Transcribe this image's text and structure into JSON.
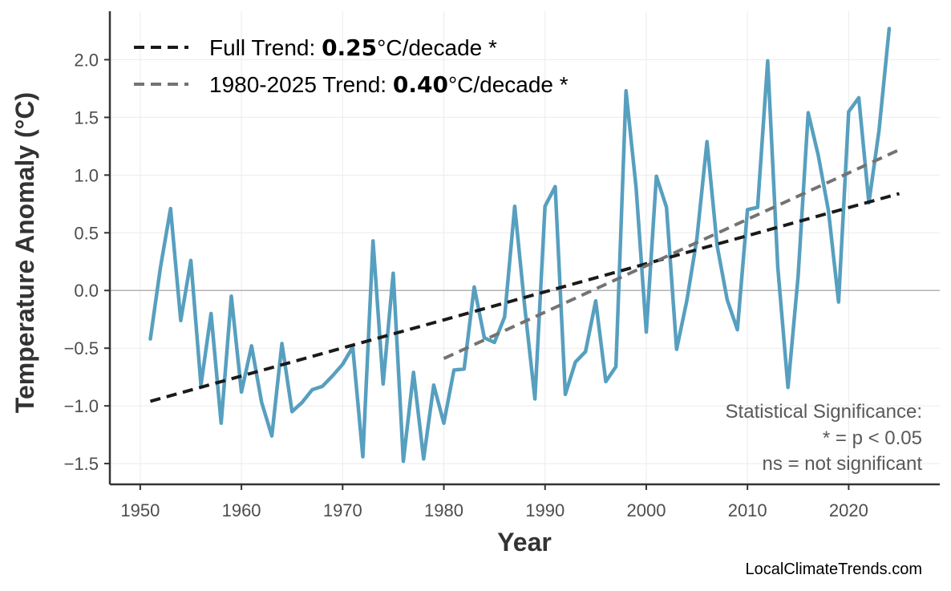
{
  "chart_data": {
    "type": "line",
    "xlabel": "Year",
    "ylabel": "Temperature Anomaly (°C)",
    "xlim": [
      1947,
      2029
    ],
    "ylim": [
      -1.68,
      2.42
    ],
    "xticks": [
      1950,
      1960,
      1970,
      1980,
      1990,
      2000,
      2010,
      2020
    ],
    "xtick_labels": [
      "1950",
      "1960",
      "1970",
      "1980",
      "1990",
      "2000",
      "2010",
      "2020"
    ],
    "yticks": [
      -1.5,
      -1.0,
      -0.5,
      0.0,
      0.5,
      1.0,
      1.5,
      2.0
    ],
    "ytick_labels": [
      "−1.5",
      "−1.0",
      "−0.5",
      "0.0",
      "0.5",
      "1.0",
      "1.5",
      "2.0"
    ],
    "grid": true,
    "zero_line": true,
    "legend_position": "top-left",
    "series": [
      {
        "colors": "#579fbf",
        "x": [
          1951,
          1952,
          1953,
          1954,
          1955,
          1956,
          1957,
          1958,
          1959,
          1960,
          1961,
          1962,
          1963,
          1964,
          1965,
          1966,
          1967,
          1968,
          1969,
          1970,
          1971,
          1972,
          1973,
          1974,
          1975,
          1976,
          1977,
          1978,
          1979,
          1980,
          1981,
          1982,
          1983,
          1984,
          1985,
          1986,
          1987,
          1988,
          1989,
          1990,
          1991,
          1992,
          1993,
          1994,
          1995,
          1996,
          1997,
          1998,
          1999,
          2000,
          2001,
          2002,
          2003,
          2004,
          2005,
          2006,
          2007,
          2008,
          2009,
          2010,
          2011,
          2012,
          2013,
          2014,
          2015,
          2016,
          2017,
          2018,
          2019,
          2020,
          2021,
          2022,
          2023,
          2024
        ],
        "y": [
          -0.42,
          0.2,
          0.71,
          -0.26,
          0.26,
          -0.82,
          -0.2,
          -1.15,
          -0.05,
          -0.88,
          -0.48,
          -0.97,
          -1.26,
          -0.46,
          -1.05,
          -0.97,
          -0.86,
          -0.83,
          -0.74,
          -0.64,
          -0.49,
          -1.44,
          0.43,
          -0.81,
          0.15,
          -1.48,
          -0.71,
          -1.46,
          -0.82,
          -1.15,
          -0.69,
          -0.68,
          0.03,
          -0.41,
          -0.45,
          -0.23,
          0.73,
          -0.15,
          -0.94,
          0.73,
          0.9,
          -0.9,
          -0.62,
          -0.53,
          -0.09,
          -0.79,
          -0.66,
          1.73,
          0.89,
          -0.36,
          0.99,
          0.72,
          -0.51,
          -0.09,
          0.45,
          1.29,
          0.39,
          -0.08,
          -0.34,
          0.7,
          0.72,
          1.99,
          0.2,
          -0.84,
          0.12,
          1.54,
          1.17,
          0.69,
          -0.1,
          1.55,
          1.67,
          0.76,
          1.39,
          2.27
        ]
      },
      {
        "name": "Full Trend",
        "colors": "#1a1a1a",
        "style": "dashed",
        "x": [
          1951,
          2025
        ],
        "y": [
          -0.96,
          0.84
        ]
      },
      {
        "name": "1980-2025 Trend",
        "colors": "#737373",
        "style": "dashed",
        "x": [
          1980,
          2025
        ],
        "y": [
          -0.59,
          1.22
        ]
      }
    ],
    "legend": [
      {
        "prefix": "Full Trend: ",
        "value": "0.25",
        "suffix": "°C/decade *"
      },
      {
        "prefix": "1980-2025 Trend: ",
        "value": "0.40",
        "suffix": "°C/decade *"
      }
    ],
    "annotations": {
      "significance": [
        "Statistical Significance:",
        "* = p < 0.05",
        "ns = not significant"
      ],
      "source": "LocalClimateTrends.com"
    }
  }
}
